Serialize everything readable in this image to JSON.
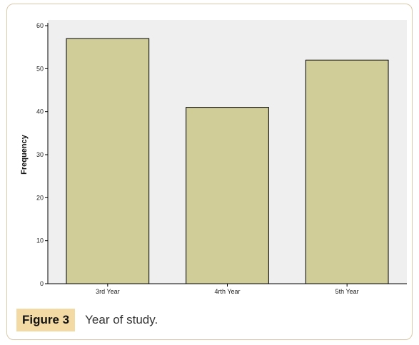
{
  "chart_data": {
    "type": "bar",
    "categories": [
      "3rd Year",
      "4rth Year",
      "5th Year"
    ],
    "values": [
      57,
      41,
      52
    ],
    "ylabel": "Frequency",
    "ylim": [
      0,
      60
    ],
    "yticks": [
      0,
      10,
      20,
      30,
      40,
      50,
      60
    ],
    "bar_color": "#d0cd98",
    "plot_background": "#efefef",
    "grid": false
  },
  "caption": {
    "label": "Figure 3",
    "text": "Year of study."
  },
  "colors": {
    "frame_border": "#d9c9a8",
    "caption_label_bg": "#f3d9a3"
  }
}
